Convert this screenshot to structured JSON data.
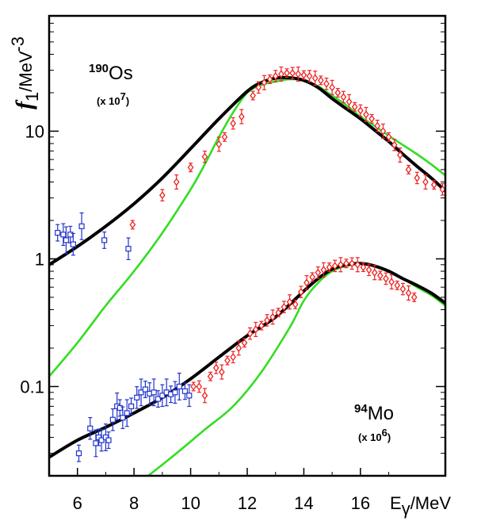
{
  "chart_data": {
    "type": "scatter",
    "title": "",
    "xlabel": {
      "main": "E",
      "sub": "γ",
      "unit": "/MeV"
    },
    "ylabel": {
      "main": "f",
      "sub": "1",
      "unit": "/MeV",
      "exp": "-3"
    },
    "xlim": [
      5,
      19
    ],
    "ylim": [
      0.02,
      80
    ],
    "yscale": "log",
    "grid": false,
    "xticks": [
      6,
      8,
      10,
      12,
      14,
      16
    ],
    "xtick_labels": [
      "6",
      "8",
      "10",
      "12",
      "14",
      "16"
    ],
    "yticks": [
      0.1,
      1,
      10
    ],
    "ytick_labels": [
      "0.1",
      "1",
      "10"
    ],
    "annotations": [
      {
        "mass": "190",
        "element": "Os",
        "scale_prefix": "(x 10",
        "scale_exp": "7",
        "scale_suffix": ")"
      },
      {
        "mass": "94",
        "element": "Mo",
        "scale_prefix": "(x 10",
        "scale_exp": "6",
        "scale_suffix": ")"
      }
    ],
    "colors": {
      "model_curve": "#000000",
      "lorentz_curve": "#33dd22",
      "photoabsorption_points": "#ee2222",
      "low_energy_points": "#2233cc"
    },
    "series": [
      {
        "label": "Os-190 model",
        "kind": "line",
        "color": "#000000",
        "x": [
          5.0,
          6.0,
          7.0,
          8.0,
          9.0,
          10.0,
          11.0,
          12.0,
          12.5,
          13.0,
          13.5,
          14.0,
          14.5,
          15.0,
          15.5,
          16.0,
          16.5,
          17.0,
          17.5,
          18.0,
          18.5,
          19.0
        ],
        "y": [
          0.9,
          1.25,
          1.8,
          2.7,
          4.3,
          7.3,
          12.5,
          20.5,
          24.0,
          26.0,
          26.2,
          25.0,
          22.0,
          18.0,
          15.0,
          12.5,
          10.2,
          8.3,
          6.6,
          5.3,
          4.3,
          3.4
        ]
      },
      {
        "label": "Os-190 Lorentz",
        "kind": "line",
        "color": "#33dd22",
        "x": [
          5.0,
          6.0,
          7.0,
          8.0,
          9.0,
          10.0,
          10.5,
          11.0,
          11.5,
          12.0,
          12.5,
          13.0,
          13.5,
          14.0,
          14.5,
          15.0,
          15.5,
          16.0,
          16.5,
          17.0,
          17.5,
          18.0,
          18.5,
          19.0
        ],
        "y": [
          0.12,
          0.22,
          0.43,
          0.8,
          1.6,
          3.5,
          5.5,
          9.0,
          14.0,
          20.0,
          23.0,
          24.5,
          25.5,
          25.0,
          22.5,
          19.0,
          16.0,
          13.0,
          11.0,
          9.2,
          7.8,
          6.6,
          5.5,
          4.5
        ]
      },
      {
        "label": "Os-190 photoabsorption",
        "kind": "points",
        "marker": "diamond",
        "color": "#ee2222",
        "x": [
          7.95,
          9.0,
          9.5,
          10.0,
          10.5,
          11.0,
          11.2,
          11.5,
          11.8,
          12.2,
          12.4,
          12.6,
          12.8,
          13.0,
          13.2,
          13.4,
          13.6,
          13.8,
          14.0,
          14.2,
          14.4,
          14.6,
          14.8,
          15.0,
          15.2,
          15.4,
          15.6,
          15.8,
          16.0,
          16.2,
          16.4,
          16.6,
          16.8,
          17.0,
          17.2,
          17.4,
          17.7,
          18.0,
          18.3,
          18.6,
          18.9
        ],
        "y": [
          1.85,
          3.15,
          4.0,
          5.2,
          6.3,
          7.9,
          9.0,
          11.5,
          13.0,
          19.0,
          22.0,
          24.0,
          25.5,
          27.0,
          28.0,
          28.5,
          28.5,
          28.0,
          27.5,
          27.0,
          26.0,
          25.0,
          23.5,
          22.0,
          20.0,
          18.5,
          17.0,
          15.5,
          14.5,
          13.5,
          12.5,
          11.0,
          10.0,
          9.0,
          7.8,
          6.5,
          5.0,
          4.3,
          4.0,
          3.8,
          3.5
        ]
      },
      {
        "label": "Os-190 low energy",
        "kind": "points",
        "marker": "square",
        "color": "#2233cc",
        "x": [
          5.3,
          5.5,
          5.6,
          5.75,
          5.85,
          6.15,
          6.95,
          7.8
        ],
        "y": [
          1.6,
          1.55,
          1.4,
          1.55,
          1.3,
          1.8,
          1.4,
          1.2
        ]
      },
      {
        "label": "Mo-94 model",
        "kind": "line",
        "color": "#000000",
        "x": [
          5.0,
          6.0,
          7.0,
          8.0,
          9.0,
          10.0,
          11.0,
          12.0,
          13.0,
          14.0,
          14.5,
          15.0,
          15.5,
          16.0,
          16.5,
          17.0,
          17.5,
          18.0,
          18.5,
          19.0
        ],
        "y": [
          0.028,
          0.038,
          0.048,
          0.062,
          0.082,
          0.115,
          0.17,
          0.25,
          0.35,
          0.56,
          0.7,
          0.83,
          0.9,
          0.92,
          0.88,
          0.8,
          0.7,
          0.62,
          0.54,
          0.45
        ]
      },
      {
        "label": "Mo-94 Lorentz",
        "kind": "line",
        "color": "#33dd22",
        "x": [
          8.5,
          9.5,
          10.5,
          11.5,
          12.5,
          13.5,
          14.0,
          14.5,
          15.0,
          15.5,
          16.0,
          16.5,
          17.0,
          17.5,
          18.0,
          18.5,
          19.0
        ],
        "y": [
          0.02,
          0.03,
          0.046,
          0.07,
          0.13,
          0.29,
          0.47,
          0.65,
          0.8,
          0.88,
          0.91,
          0.88,
          0.8,
          0.7,
          0.6,
          0.52,
          0.43
        ]
      },
      {
        "label": "Mo-94 photoabsorption",
        "kind": "points",
        "marker": "diamond",
        "color": "#ee2222",
        "x": [
          10.1,
          10.3,
          10.5,
          10.7,
          10.9,
          11.1,
          11.3,
          11.5,
          11.7,
          11.9,
          12.1,
          12.3,
          12.5,
          12.7,
          12.9,
          13.1,
          13.3,
          13.5,
          13.7,
          13.9,
          14.1,
          14.3,
          14.5,
          14.7,
          14.9,
          15.1,
          15.3,
          15.5,
          15.7,
          15.9,
          16.1,
          16.3,
          16.5,
          16.7,
          16.9,
          17.1,
          17.3,
          17.5,
          17.7,
          17.9
        ],
        "y": [
          0.1,
          0.1,
          0.085,
          0.12,
          0.14,
          0.13,
          0.16,
          0.17,
          0.2,
          0.22,
          0.26,
          0.28,
          0.3,
          0.33,
          0.35,
          0.38,
          0.42,
          0.46,
          0.44,
          0.55,
          0.65,
          0.72,
          0.78,
          0.82,
          0.86,
          0.88,
          0.9,
          0.92,
          0.92,
          0.9,
          0.86,
          0.82,
          0.78,
          0.74,
          0.7,
          0.66,
          0.62,
          0.58,
          0.54,
          0.5
        ]
      },
      {
        "label": "Mo-94 low energy",
        "kind": "points",
        "marker": "square",
        "color": "#2233cc",
        "x": [
          6.05,
          6.45,
          6.65,
          6.75,
          6.85,
          7.0,
          7.1,
          7.25,
          7.4,
          7.5,
          7.6,
          7.75,
          7.9,
          8.1,
          8.25,
          8.4,
          8.55,
          8.7,
          8.85,
          9.0,
          9.15,
          9.3,
          9.45,
          9.6,
          9.8,
          9.95
        ],
        "y": [
          0.03,
          0.047,
          0.036,
          0.04,
          0.038,
          0.04,
          0.038,
          0.055,
          0.07,
          0.068,
          0.057,
          0.062,
          0.07,
          0.082,
          0.09,
          0.095,
          0.088,
          0.09,
          0.08,
          0.085,
          0.09,
          0.087,
          0.09,
          0.1,
          0.092,
          0.085
        ]
      }
    ]
  }
}
